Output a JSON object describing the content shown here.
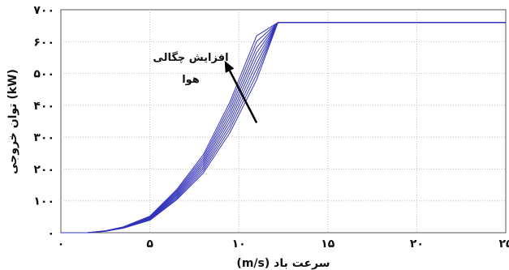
{
  "chart_data": {
    "type": "line",
    "xlabel": "(m/s) سرعت باد",
    "ylabel": "توان خروجی (kW)",
    "xlim": [
      0,
      25
    ],
    "ylim": [
      0,
      700
    ],
    "x_ticks": [
      0,
      5,
      10,
      15,
      20,
      25
    ],
    "x_tick_labels": [
      "۰",
      "۵",
      "۱۰",
      "۱۵",
      "۲۰",
      "۲۵"
    ],
    "y_ticks": [
      0,
      100,
      200,
      300,
      400,
      500,
      600,
      700
    ],
    "y_tick_labels": [
      "۰",
      "۱۰۰",
      "۲۰۰",
      "۳۰۰",
      "۴۰۰",
      "۵۰۰",
      "۶۰۰",
      "۷۰۰"
    ],
    "grid": true,
    "line_color": "#3333bb",
    "annotation": {
      "line1": "افزایش چگالی",
      "line2": "هوا",
      "arrow_from": [
        11,
        345
      ],
      "arrow_to": [
        9.2,
        540
      ]
    },
    "series": [
      {
        "x": [
          0,
          1.5,
          2.5,
          3.5,
          5,
          6.5,
          8,
          9.5,
          11,
          12.2,
          25
        ],
        "y": [
          0,
          0,
          6,
          18,
          52,
          135,
          245,
          410,
          618,
          660,
          660
        ]
      },
      {
        "x": [
          0,
          1.5,
          2.5,
          3.5,
          5,
          6.5,
          8,
          9.5,
          11,
          12.2,
          25
        ],
        "y": [
          0,
          0,
          5.8,
          17.6,
          50,
          131,
          237,
          398,
          600,
          660,
          660
        ]
      },
      {
        "x": [
          0,
          1.5,
          2.5,
          3.5,
          5,
          6.5,
          8,
          9.5,
          11,
          12.2,
          25
        ],
        "y": [
          0,
          0,
          5.6,
          17,
          48,
          127,
          229,
          386,
          582,
          660,
          660
        ]
      },
      {
        "x": [
          0,
          1.5,
          2.5,
          3.5,
          5,
          6.5,
          8,
          9.5,
          11,
          12.2,
          25
        ],
        "y": [
          0,
          0,
          5.4,
          16.5,
          46.5,
          123,
          222,
          374,
          565,
          660,
          660
        ]
      },
      {
        "x": [
          0,
          1.5,
          2.5,
          3.5,
          5,
          6.5,
          8,
          9.5,
          11,
          12.2,
          25
        ],
        "y": [
          0,
          0,
          5.2,
          16,
          45,
          119,
          215,
          362,
          548,
          660,
          660
        ]
      },
      {
        "x": [
          0,
          1.5,
          2.5,
          3.5,
          5,
          6.5,
          8,
          9.5,
          11,
          12.2,
          25
        ],
        "y": [
          0,
          0,
          5,
          15.5,
          43.5,
          115,
          208,
          350,
          531,
          660,
          660
        ]
      },
      {
        "x": [
          0,
          1.5,
          2.5,
          3.5,
          5,
          6.5,
          8,
          9.5,
          11,
          12.2,
          25
        ],
        "y": [
          0,
          0,
          4.8,
          15,
          42,
          111,
          201,
          338,
          514,
          660,
          660
        ]
      },
      {
        "x": [
          0,
          1.5,
          2.5,
          3.5,
          5,
          6.5,
          8,
          9.5,
          11,
          12.2,
          25
        ],
        "y": [
          0,
          0,
          4.6,
          14.5,
          40.5,
          107,
          194,
          326,
          497,
          660,
          660
        ]
      },
      {
        "x": [
          0,
          1.5,
          2.5,
          3.5,
          5,
          6.5,
          8,
          9.5,
          11,
          12.2,
          25
        ],
        "y": [
          0,
          0,
          4.4,
          14,
          39,
          103,
          187,
          314,
          480,
          660,
          660
        ]
      }
    ]
  }
}
